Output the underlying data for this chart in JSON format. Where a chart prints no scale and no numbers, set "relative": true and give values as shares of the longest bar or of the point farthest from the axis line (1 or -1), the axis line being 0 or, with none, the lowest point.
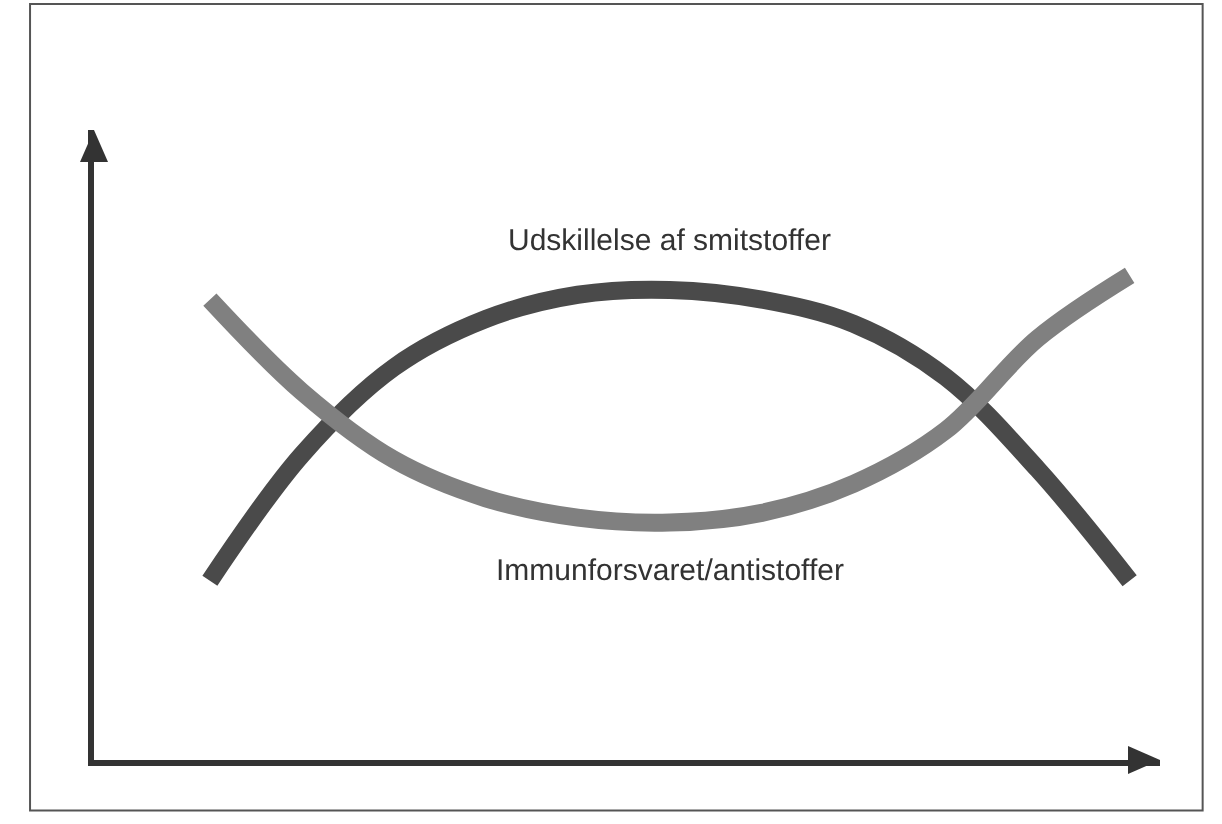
{
  "chart_data": {
    "type": "line",
    "relative": true,
    "categories": [
      null,
      null,
      null,
      null,
      null,
      null,
      null,
      null,
      null,
      null,
      null
    ],
    "series": [
      {
        "name": "Udskillelse af smitstoffer",
        "color": "#4a4a4a",
        "values": [
          0.37,
          0.63,
          0.81,
          0.91,
          0.96,
          0.97,
          0.95,
          0.9,
          0.79,
          0.6,
          0.37
        ]
      },
      {
        "name": "Immunforsvaret/antistoffer",
        "color": "#808080",
        "values": [
          0.95,
          0.76,
          0.62,
          0.54,
          0.5,
          0.49,
          0.51,
          0.57,
          0.68,
          0.87,
          1.0
        ]
      }
    ],
    "legend": false,
    "marker": "none",
    "line_style": "solid"
  }
}
